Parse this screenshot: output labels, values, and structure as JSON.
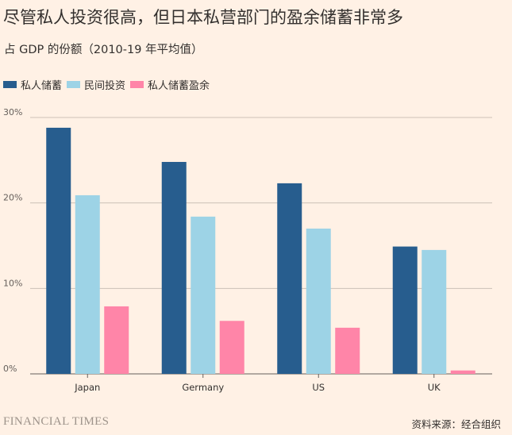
{
  "chart_data": {
    "type": "bar",
    "title": "尽管私人投资很高，但日本私营部门的盈余储蓄非常多",
    "subtitle": "占 GDP 的份额（2010-19 年平均值）",
    "categories": [
      "Japan",
      "Germany",
      "US",
      "UK"
    ],
    "series": [
      {
        "name": "私人储蓄",
        "color": "#275d8e",
        "values": [
          28.8,
          24.8,
          22.3,
          14.9
        ]
      },
      {
        "name": "民间投资",
        "color": "#9dd3e6",
        "values": [
          20.9,
          18.4,
          17.0,
          14.5
        ]
      },
      {
        "name": "私人储蓄盈余",
        "color": "#ff85a8",
        "values": [
          7.9,
          6.2,
          5.4,
          0.4
        ]
      }
    ],
    "ylim": [
      0,
      30
    ],
    "yticks": [
      0,
      10,
      20,
      30
    ],
    "ytick_labels": [
      "0%",
      "10%",
      "20%",
      "30%"
    ],
    "grid": true,
    "legend": "top-left",
    "source": "资料来源：经合组织"
  },
  "brand": "FINANCIAL TIMES"
}
